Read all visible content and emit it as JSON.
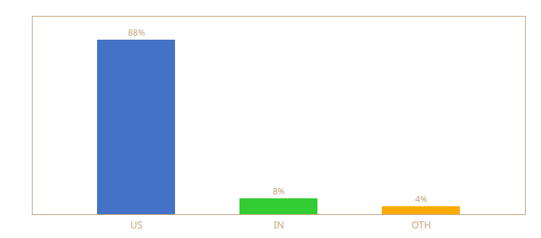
{
  "chart_data": {
    "type": "bar",
    "categories": [
      "US",
      "IN",
      "OTH"
    ],
    "values": [
      88,
      8,
      4
    ],
    "value_labels": [
      "88%",
      "8%",
      "4%"
    ],
    "colors": [
      "#4472c4",
      "#33cc33",
      "#ffaa00"
    ],
    "ylim": [
      0,
      100
    ],
    "data_labels": true,
    "tick_labels": "x",
    "grid": false
  }
}
